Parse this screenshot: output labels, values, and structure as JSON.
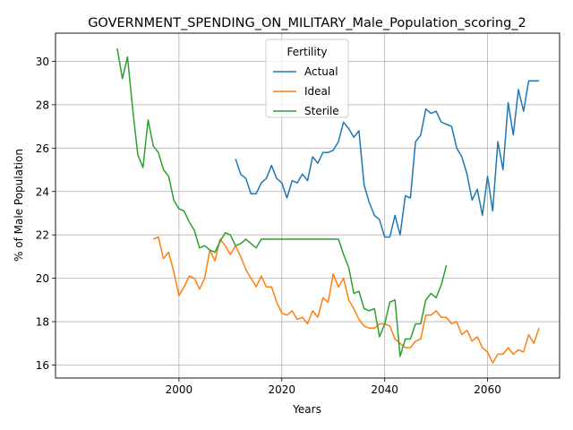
{
  "chart_data": {
    "type": "line",
    "title": "GOVERNMENT_SPENDING_ON_MILITARY_Male_Population_scoring_2",
    "xlabel": "Years",
    "ylabel": "% of Male Population",
    "xlim": [
      1976,
      2074
    ],
    "ylim": [
      15.4,
      31.3
    ],
    "xticks": [
      2000,
      2020,
      2040,
      2060
    ],
    "yticks": [
      16,
      18,
      20,
      22,
      24,
      26,
      28,
      30
    ],
    "grid": true,
    "legend": {
      "title": "Fertility",
      "position": "top-center"
    },
    "series": [
      {
        "name": "Actual",
        "color": "#1f77b4",
        "x": [
          2011,
          2012,
          2013,
          2014,
          2015,
          2016,
          2017,
          2018,
          2019,
          2020,
          2021,
          2022,
          2023,
          2024,
          2025,
          2026,
          2027,
          2028,
          2029,
          2030,
          2031,
          2032,
          2033,
          2034,
          2035,
          2036,
          2037,
          2038,
          2039,
          2040,
          2041,
          2042,
          2043,
          2044,
          2045,
          2046,
          2047,
          2048,
          2049,
          2050,
          2051,
          2052,
          2053,
          2054,
          2055,
          2056,
          2057,
          2058,
          2059,
          2060,
          2061,
          2062,
          2063,
          2064,
          2065,
          2066,
          2067,
          2068,
          2069,
          2070
        ],
        "values": [
          25.5,
          24.8,
          24.6,
          23.9,
          23.9,
          24.4,
          24.6,
          25.2,
          24.6,
          24.4,
          23.7,
          24.5,
          24.4,
          24.8,
          24.5,
          25.6,
          25.3,
          25.8,
          25.8,
          25.9,
          26.3,
          27.2,
          26.9,
          26.5,
          26.8,
          24.3,
          23.5,
          22.9,
          22.7,
          21.9,
          21.9,
          22.9,
          22.0,
          23.8,
          23.7,
          26.3,
          26.6,
          27.8,
          27.6,
          27.7,
          27.2,
          27.1,
          27.0,
          26.0,
          25.6,
          24.8,
          23.6,
          24.1,
          22.9,
          24.7,
          23.1,
          26.3,
          25.0,
          28.1,
          26.6,
          28.7,
          27.7,
          29.1,
          29.1,
          29.1
        ]
      },
      {
        "name": "Ideal",
        "color": "#ff7f0e",
        "x": [
          1995,
          1996,
          1997,
          1998,
          1999,
          2000,
          2001,
          2002,
          2003,
          2004,
          2005,
          2006,
          2007,
          2008,
          2009,
          2010,
          2011,
          2012,
          2013,
          2014,
          2015,
          2016,
          2017,
          2018,
          2019,
          2020,
          2021,
          2022,
          2023,
          2024,
          2025,
          2026,
          2027,
          2028,
          2029,
          2030,
          2031,
          2032,
          2033,
          2034,
          2035,
          2036,
          2037,
          2038,
          2039,
          2040,
          2041,
          2042,
          2043,
          2044,
          2045,
          2046,
          2047,
          2048,
          2049,
          2050,
          2051,
          2052,
          2053,
          2054,
          2055,
          2056,
          2057,
          2058,
          2059,
          2060,
          2061,
          2062,
          2063,
          2064,
          2065,
          2066,
          2067,
          2068,
          2069,
          2070
        ],
        "values": [
          21.8,
          21.9,
          20.9,
          21.2,
          20.3,
          19.2,
          19.6,
          20.1,
          20.0,
          19.5,
          20.0,
          21.3,
          20.8,
          21.8,
          21.5,
          21.1,
          21.5,
          21.0,
          20.4,
          20.0,
          19.6,
          20.1,
          19.6,
          19.6,
          18.9,
          18.4,
          18.3,
          18.5,
          18.1,
          18.2,
          17.9,
          18.5,
          18.2,
          19.1,
          18.9,
          20.2,
          19.6,
          20.0,
          19.0,
          18.6,
          18.1,
          17.8,
          17.7,
          17.7,
          17.9,
          17.9,
          17.8,
          17.2,
          17.0,
          16.8,
          16.8,
          17.1,
          17.2,
          18.3,
          18.3,
          18.5,
          18.2,
          18.2,
          17.9,
          18.0,
          17.4,
          17.6,
          17.1,
          17.3,
          16.8,
          16.6,
          16.1,
          16.5,
          16.5,
          16.8,
          16.5,
          16.7,
          16.6,
          17.4,
          17.0,
          17.7
        ]
      },
      {
        "name": "Sterile",
        "color": "#2ca02c",
        "x": [
          1988,
          1989,
          1990,
          1991,
          1992,
          1993,
          1994,
          1995,
          1996,
          1997,
          1998,
          1999,
          2000,
          2001,
          2002,
          2003,
          2004,
          2005,
          2006,
          2007,
          2008,
          2009,
          2010,
          2011,
          2012,
          2013,
          2014,
          2015,
          2016,
          2017,
          2018,
          2019,
          2020,
          2021,
          2022,
          2023,
          2024,
          2025,
          2026,
          2027,
          2028,
          2029,
          2030,
          2031,
          2032,
          2033,
          2034,
          2035,
          2036,
          2037,
          2038,
          2039,
          2040,
          2041,
          2042,
          2043,
          2044,
          2045,
          2046,
          2047,
          2048,
          2049,
          2050,
          2051,
          2052
        ],
        "values": [
          30.6,
          29.2,
          30.2,
          27.8,
          25.7,
          25.1,
          27.3,
          26.1,
          25.8,
          25.0,
          24.7,
          23.6,
          23.2,
          23.1,
          22.6,
          22.2,
          21.4,
          21.5,
          21.3,
          21.2,
          21.7,
          22.1,
          22.0,
          21.5,
          21.6,
          21.8,
          21.6,
          21.4,
          21.8,
          21.8,
          21.8,
          21.8,
          21.8,
          21.8,
          21.8,
          21.8,
          21.8,
          21.8,
          21.8,
          21.8,
          21.8,
          21.8,
          21.8,
          21.8,
          21.1,
          20.5,
          19.3,
          19.4,
          18.6,
          18.5,
          18.6,
          17.3,
          17.9,
          18.9,
          19.0,
          16.4,
          17.2,
          17.2,
          17.9,
          17.9,
          19.0,
          19.3,
          19.1,
          19.7,
          20.6
        ]
      }
    ]
  }
}
